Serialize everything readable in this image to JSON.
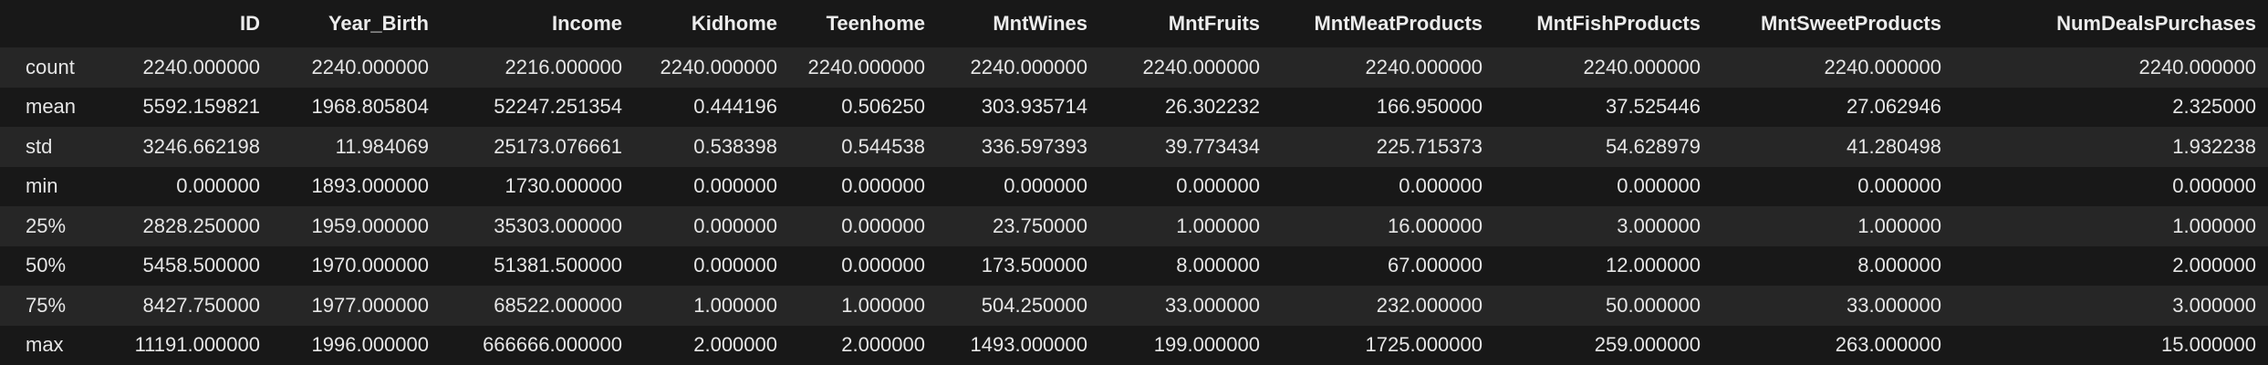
{
  "table": {
    "index_header": "",
    "columns": [
      "ID",
      "Year_Birth",
      "Income",
      "Kidhome",
      "Teenhome",
      "MntWines",
      "MntFruits",
      "MntMeatProducts",
      "MntFishProducts",
      "MntSweetProducts",
      "NumDealsPurchases"
    ],
    "rows": [
      {
        "label": "count",
        "values": [
          "2240.000000",
          "2240.000000",
          "2216.000000",
          "2240.000000",
          "2240.000000",
          "2240.000000",
          "2240.000000",
          "2240.000000",
          "2240.000000",
          "2240.000000",
          "2240.000000"
        ]
      },
      {
        "label": "mean",
        "values": [
          "5592.159821",
          "1968.805804",
          "52247.251354",
          "0.444196",
          "0.506250",
          "303.935714",
          "26.302232",
          "166.950000",
          "37.525446",
          "27.062946",
          "2.325000"
        ]
      },
      {
        "label": "std",
        "values": [
          "3246.662198",
          "11.984069",
          "25173.076661",
          "0.538398",
          "0.544538",
          "336.597393",
          "39.773434",
          "225.715373",
          "54.628979",
          "41.280498",
          "1.932238"
        ]
      },
      {
        "label": "min",
        "values": [
          "0.000000",
          "1893.000000",
          "1730.000000",
          "0.000000",
          "0.000000",
          "0.000000",
          "0.000000",
          "0.000000",
          "0.000000",
          "0.000000",
          "0.000000"
        ]
      },
      {
        "label": "25%",
        "values": [
          "2828.250000",
          "1959.000000",
          "35303.000000",
          "0.000000",
          "0.000000",
          "23.750000",
          "1.000000",
          "16.000000",
          "3.000000",
          "1.000000",
          "1.000000"
        ]
      },
      {
        "label": "50%",
        "values": [
          "5458.500000",
          "1970.000000",
          "51381.500000",
          "0.000000",
          "0.000000",
          "173.500000",
          "8.000000",
          "67.000000",
          "12.000000",
          "8.000000",
          "2.000000"
        ]
      },
      {
        "label": "75%",
        "values": [
          "8427.750000",
          "1977.000000",
          "68522.000000",
          "1.000000",
          "1.000000",
          "504.250000",
          "33.000000",
          "232.000000",
          "50.000000",
          "33.000000",
          "3.000000"
        ]
      },
      {
        "label": "max",
        "values": [
          "11191.000000",
          "1996.000000",
          "666666.000000",
          "2.000000",
          "2.000000",
          "1493.000000",
          "199.000000",
          "1725.000000",
          "259.000000",
          "263.000000",
          "15.000000"
        ]
      }
    ]
  },
  "colors": {
    "background": "#181818",
    "stripe": "#262626",
    "text": "#e6e6e6"
  }
}
